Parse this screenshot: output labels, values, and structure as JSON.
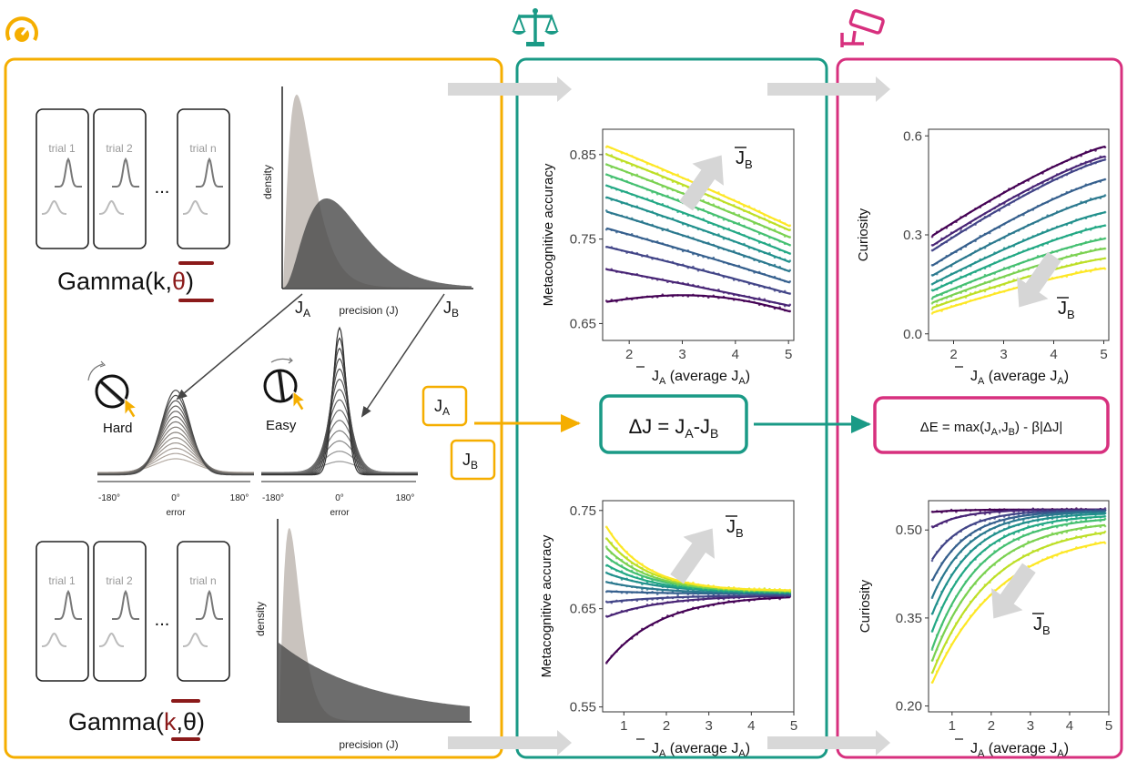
{
  "colors": {
    "orange": "#F5AE00",
    "teal": "#1A9A86",
    "magenta": "#D7307E",
    "dark_red": "#8B1A1A",
    "arrow_grey": "#D8D8D8",
    "curve_light": "#C9C3BE",
    "curve_dark": "#555555"
  },
  "icons": {
    "left": "speedometer-icon",
    "middle": "balance-scale-icon",
    "right": "security-camera-icon"
  },
  "trials": [
    "trial 1",
    "trial 2",
    "trial n"
  ],
  "ellipsis": "...",
  "gamma_top": {
    "pre": "Gamma(k,",
    "param": "θ",
    "post": ")"
  },
  "gamma_bottom": {
    "pre": "Gamma(",
    "param": "k",
    "post": ",θ)"
  },
  "density_top": {
    "ylabel": "density",
    "xlabel": "precision (J)",
    "ja": "J",
    "ja_sub": "A",
    "jb": "J",
    "jb_sub": "B"
  },
  "density_bottom": {
    "ylabel": "density",
    "xlabel": "precision (J)"
  },
  "error_plots": {
    "hard": "Hard",
    "easy": "Easy",
    "tick_left": "-180°",
    "tick_mid": "0°",
    "tick_right": "180°",
    "xlabel": "error"
  },
  "small_boxes": {
    "ja": "J",
    "ja_sub": "A",
    "jb": "J",
    "jb_sub": "B"
  },
  "delta_j": {
    "text": "ΔJ = J",
    "sub_a": "A",
    "dash": "-J",
    "sub_b": "B"
  },
  "delta_e": {
    "text": "ΔE = max(J",
    "sub_a": "A",
    "comma": ",J",
    "sub_b": "B",
    "tail": ") - β|ΔJ|"
  },
  "axes_labels": {
    "meta": "Metacognitive accuracy",
    "curiosity": "Curiosity",
    "x_main": "J",
    "x_sub": "A",
    "x_tail": " (average J",
    "x_tail_sub": "A",
    "x_close": ")",
    "jb_main": "J",
    "jb_sub": "B"
  },
  "chart_data": [
    {
      "type": "line",
      "id": "meta-top",
      "ylabel": "Metacognitive accuracy",
      "x_range": [
        1.5,
        5.1
      ],
      "y_range": [
        0.63,
        0.88
      ],
      "x_ticks": [
        2,
        3,
        4,
        5
      ],
      "y_ticks": [
        0.65,
        0.75,
        0.85
      ],
      "series_start": [
        0.675,
        0.715,
        0.742,
        0.764,
        0.784,
        0.801,
        0.815,
        0.828,
        0.84,
        0.852,
        0.862
      ],
      "series_end": [
        0.657,
        0.67,
        0.684,
        0.697,
        0.71,
        0.721,
        0.731,
        0.741,
        0.75,
        0.758,
        0.763
      ],
      "bottom_mid": 0.69
    },
    {
      "type": "line",
      "id": "curiosity-top",
      "ylabel": "Curiosity",
      "x_range": [
        1.5,
        5.1
      ],
      "y_range": [
        -0.02,
        0.62
      ],
      "x_ticks": [
        2,
        3,
        4,
        5
      ],
      "y_ticks": [
        0.0,
        0.3,
        0.6
      ],
      "series_start": [
        0.29,
        0.26,
        0.245,
        0.2,
        0.17,
        0.145,
        0.125,
        0.105,
        0.09,
        0.075,
        0.06
      ],
      "series_end": [
        0.57,
        0.54,
        0.53,
        0.47,
        0.42,
        0.37,
        0.33,
        0.29,
        0.26,
        0.23,
        0.2
      ]
    },
    {
      "type": "line",
      "id": "meta-bottom",
      "ylabel": "Metacognitive accuracy",
      "x_range": [
        0.5,
        5.0
      ],
      "y_range": [
        0.545,
        0.76
      ],
      "x_ticks": [
        1,
        2,
        3,
        4,
        5
      ],
      "y_ticks": [
        0.55,
        0.65,
        0.75
      ],
      "series_start": [
        0.59,
        0.64,
        0.656,
        0.668,
        0.678,
        0.688,
        0.697,
        0.706,
        0.716,
        0.727,
        0.74
      ],
      "series_end": [
        0.664,
        0.664,
        0.664,
        0.665,
        0.665,
        0.666,
        0.666,
        0.667,
        0.667,
        0.668,
        0.668
      ]
    },
    {
      "type": "line",
      "id": "curiosity-bottom",
      "ylabel": "Curiosity",
      "x_range": [
        0.4,
        5.0
      ],
      "y_range": [
        0.19,
        0.55
      ],
      "x_ticks": [
        1,
        2,
        3,
        4,
        5
      ],
      "y_ticks": [
        0.2,
        0.35,
        0.5
      ],
      "series_start": [
        0.53,
        0.5,
        0.44,
        0.4,
        0.37,
        0.34,
        0.31,
        0.28,
        0.26,
        0.24,
        0.225
      ],
      "series_end": [
        0.535,
        0.535,
        0.534,
        0.533,
        0.532,
        0.53,
        0.527,
        0.524,
        0.518,
        0.51,
        0.5
      ]
    }
  ]
}
